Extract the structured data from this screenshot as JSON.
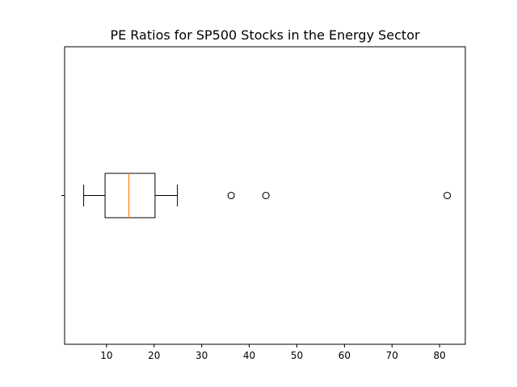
{
  "chart_data": {
    "type": "boxplot",
    "orientation": "horizontal",
    "title": "PE Ratios for SP500 Stocks in the Energy Sector",
    "xlabel": "",
    "ylabel": "",
    "xlim": [
      1.2,
      85.4
    ],
    "grid": false,
    "xticks": [
      10,
      20,
      30,
      40,
      50,
      60,
      70,
      80
    ],
    "box": {
      "whisker_low": 5.2,
      "q1": 9.7,
      "median": 14.7,
      "q3": 20.2,
      "whisker_high": 24.9
    },
    "outliers": [
      36.2,
      43.5,
      81.6
    ],
    "colors": {
      "box": "#000000",
      "median": "#ff7f0e",
      "outlier": "#000000"
    }
  }
}
